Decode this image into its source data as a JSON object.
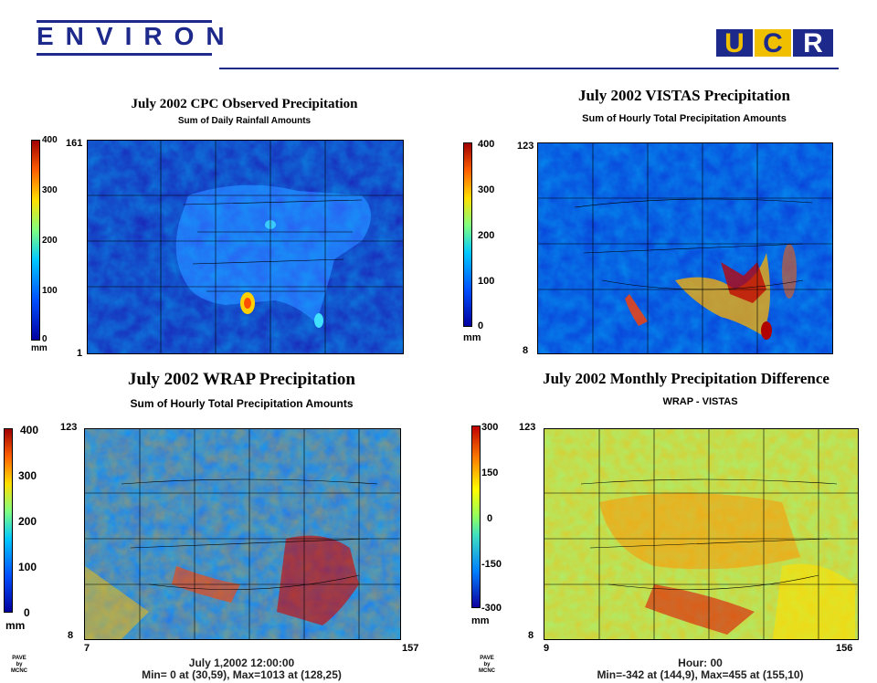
{
  "header": {
    "left_logo": "ENVIRON",
    "right_logo": "UCR"
  },
  "panels": {
    "p1": {
      "title": "July 2002 CPC Observed Precipitation",
      "subtitle": "Sum of Daily Rainfall Amounts",
      "scale_ticks": [
        "400",
        "300",
        "200",
        "100",
        "0"
      ],
      "unit": "mm",
      "y_top": "161",
      "y_bottom": "1",
      "colors": {
        "bg": "#1a23b8"
      }
    },
    "p2": {
      "title": "July 2002 VISTAS Precipitation",
      "subtitle": "Sum of Hourly Total Precipitation Amounts",
      "scale_ticks": [
        "400",
        "300",
        "200",
        "100",
        "0"
      ],
      "unit": "mm",
      "y_top": "123",
      "y_bottom": "8"
    },
    "p3": {
      "title": "July 2002 WRAP Precipitation",
      "subtitle": "Sum of Hourly Total Precipitation Amounts",
      "scale_ticks": [
        "400",
        "300",
        "200",
        "100",
        "0"
      ],
      "unit": "mm",
      "y_top": "123",
      "y_bottom": "8",
      "x_left": "7",
      "x_right": "157",
      "caption1": "July 1,2002 12:00:00",
      "caption2": "Min=  0 at (30,59), Max=1013 at (128,25)",
      "pave": [
        "PAVE",
        "by",
        "MCNC"
      ]
    },
    "p4": {
      "title": "July 2002 Monthly Precipitation Difference",
      "subtitle": "WRAP - VISTAS",
      "scale_ticks": [
        "300",
        "150",
        "0",
        "-150",
        "-300"
      ],
      "unit": "mm",
      "y_top": "123",
      "y_bottom": "8",
      "x_left": "9",
      "x_right": "156",
      "caption1": "Hour: 00",
      "caption2": "Min=-342 at (144,9), Max=455 at (155,10)",
      "pave": [
        "PAVE",
        "by",
        "MCNC"
      ]
    }
  },
  "colors": {
    "precip_scale": [
      "#0000a0",
      "#0050ff",
      "#00c8ff",
      "#80ff80",
      "#ffe000",
      "#ff6000",
      "#a00000"
    ],
    "diff_scale": [
      "#1000a0",
      "#0080ff",
      "#40e0c0",
      "#90ff60",
      "#ffff00",
      "#ff8000",
      "#c00000"
    ]
  }
}
